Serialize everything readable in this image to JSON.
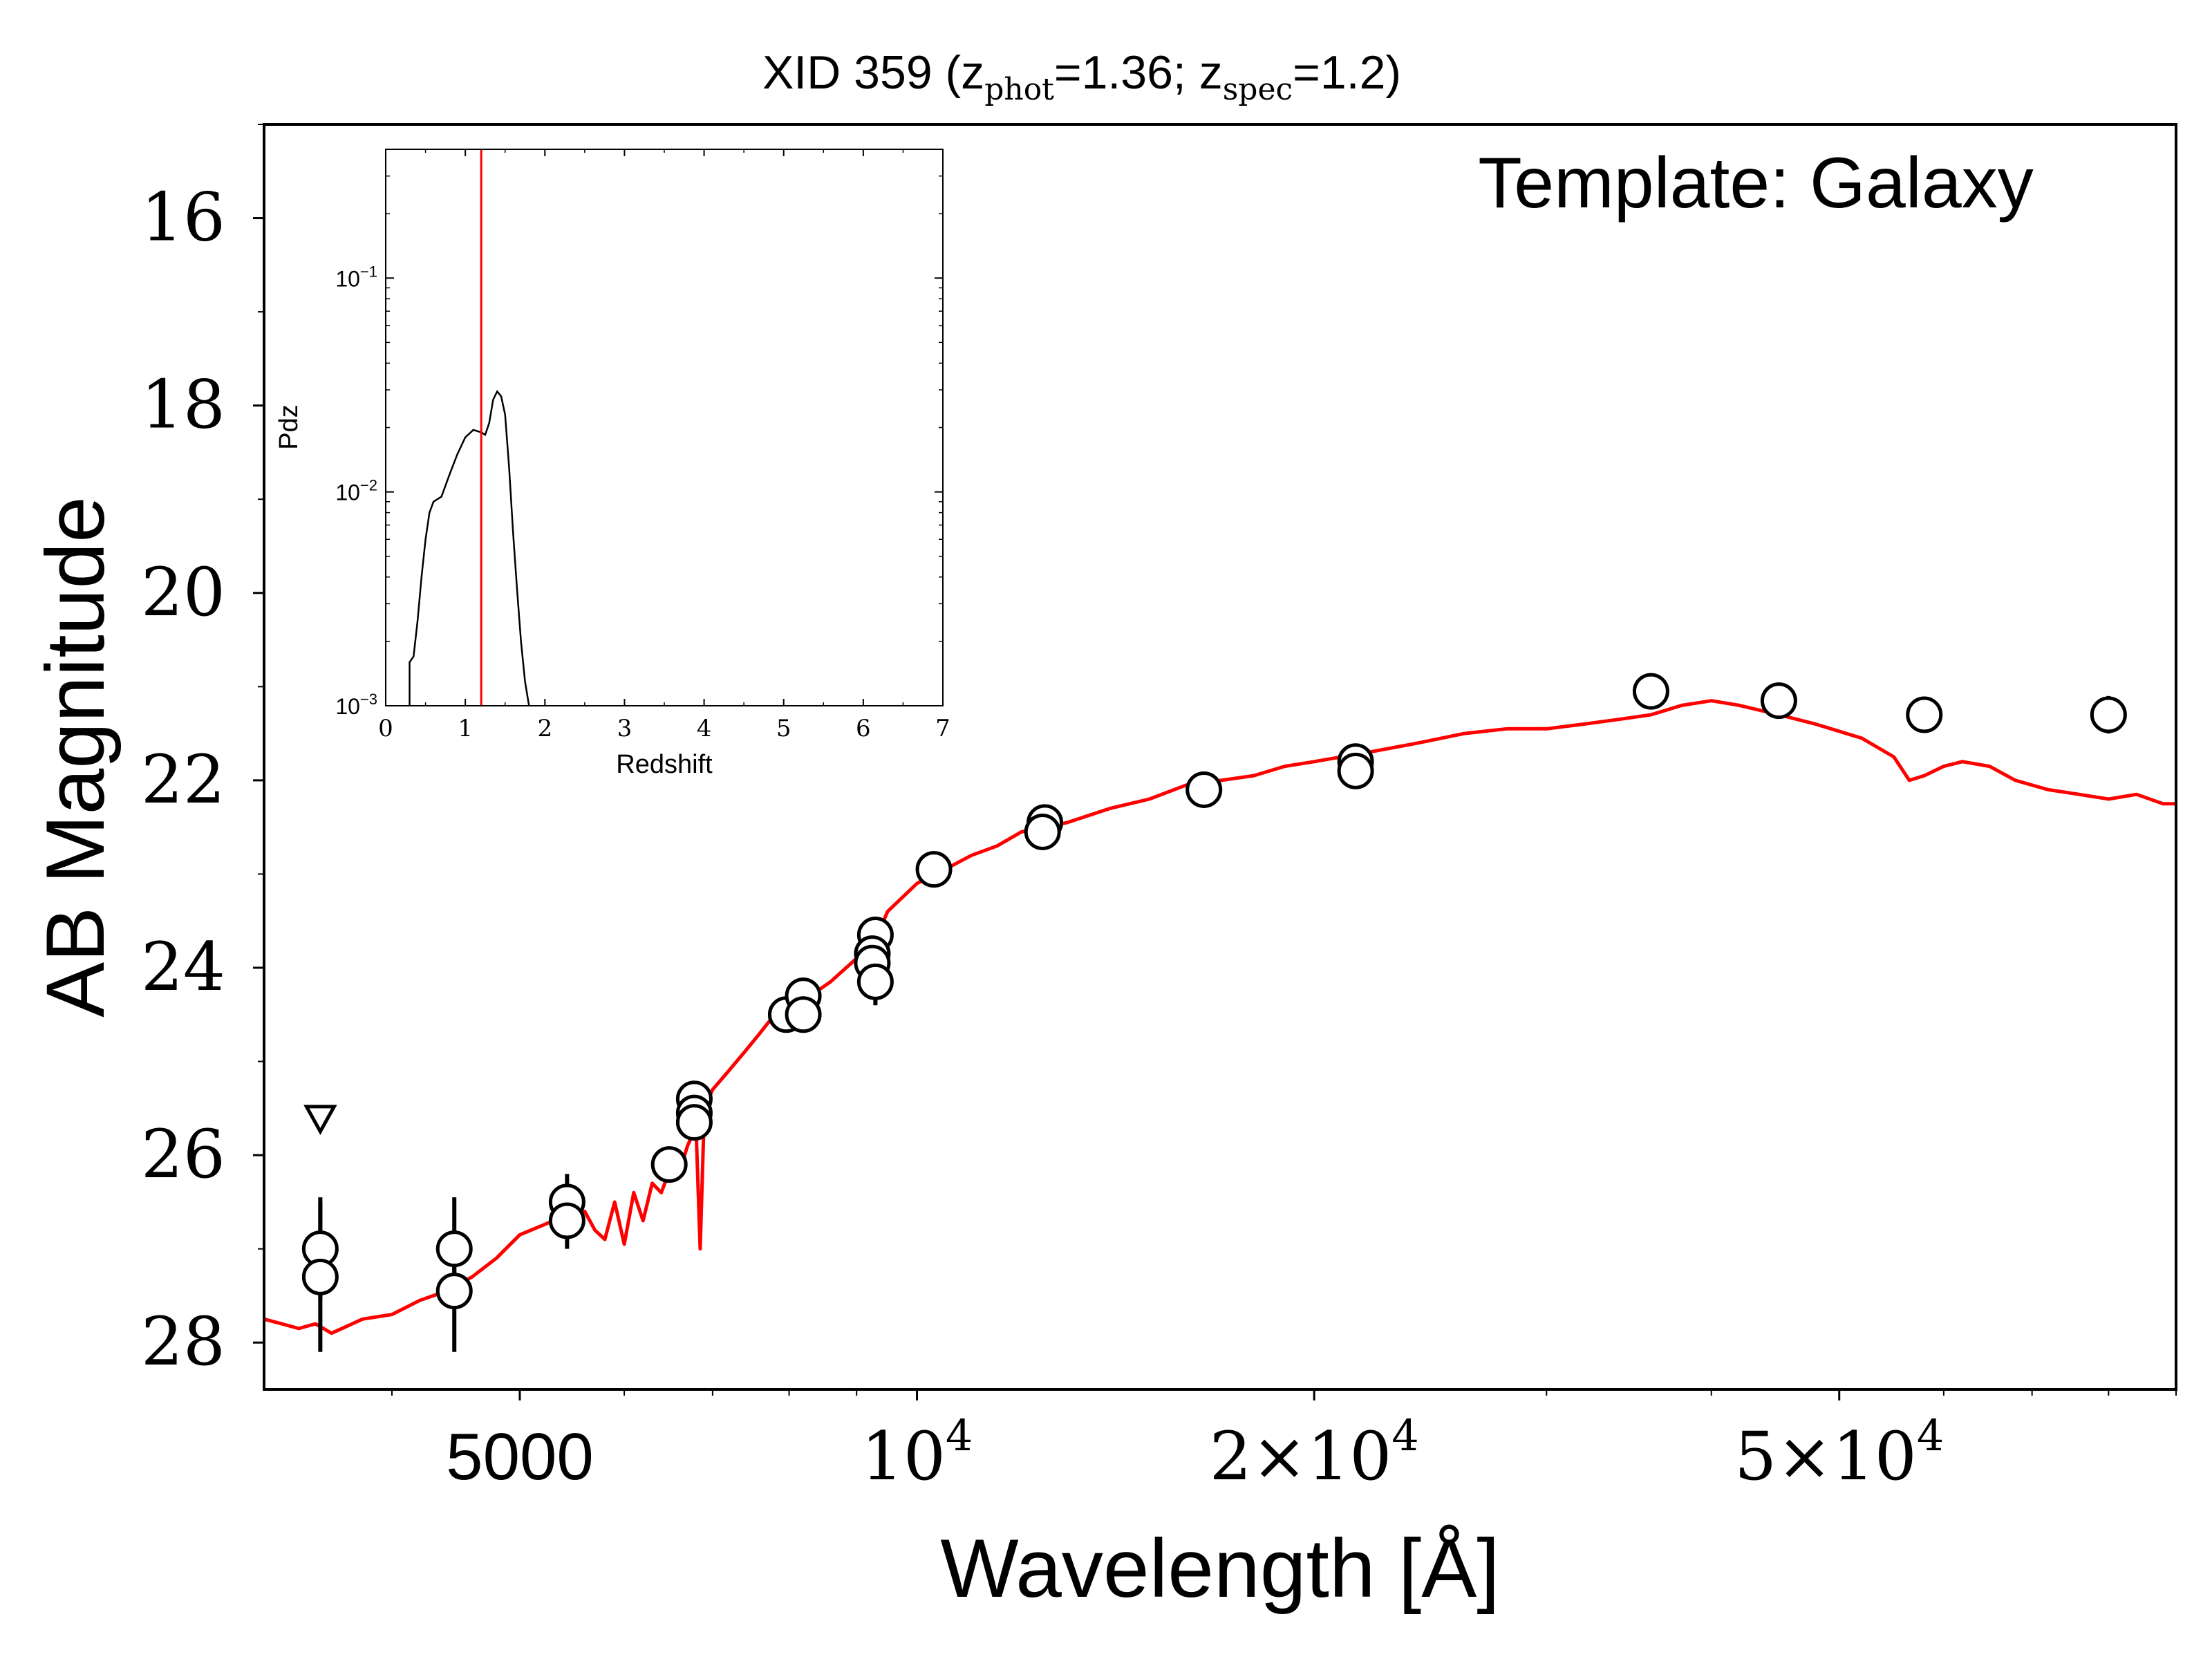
{
  "chart_data": {
    "type": "scatter",
    "title_main": "XID 359 (z",
    "title_phot_sub": "phot",
    "title_mid": "=1.36; z",
    "title_spec_sub": "spec",
    "title_end": "=1.2)",
    "annotation": "Template: Galaxy",
    "xlabel": "Wavelength [Å]",
    "ylabel": "AB Magnitude",
    "xscale": "log",
    "xlim": [
      3200,
      90000
    ],
    "ylim": [
      28.5,
      15.0
    ],
    "x_ticks": [
      {
        "value": 5000,
        "base": "5000",
        "exp": ""
      },
      {
        "value": 10000,
        "base": "10",
        "exp": "4"
      },
      {
        "value": 20000,
        "base": "2×10",
        "exp": "4"
      },
      {
        "value": 50000,
        "base": "5×10",
        "exp": "4"
      }
    ],
    "y_ticks": [
      "16",
      "18",
      "20",
      "22",
      "24",
      "26",
      "28"
    ],
    "colors": {
      "model": "#ff0000",
      "points": "#000000"
    },
    "series": [
      {
        "type": "scatter",
        "points": [
          {
            "x": 3530,
            "y": 27.0,
            "err": 0.55
          },
          {
            "x": 3530,
            "y": 27.3,
            "err": 0.8
          },
          {
            "x": 4460,
            "y": 27.0,
            "err": 0.55
          },
          {
            "x": 4460,
            "y": 27.45,
            "err": 0.65
          },
          {
            "x": 5430,
            "y": 26.5,
            "err": 0.3
          },
          {
            "x": 5430,
            "y": 26.7,
            "err": 0.3
          },
          {
            "x": 6490,
            "y": 26.1,
            "err": 0.12
          },
          {
            "x": 6780,
            "y": 25.4,
            "err": 0.12
          },
          {
            "x": 6780,
            "y": 25.55,
            "err": 0.12
          },
          {
            "x": 6780,
            "y": 25.65,
            "err": 0.12
          },
          {
            "x": 7960,
            "y": 24.5,
            "err": 0.08
          },
          {
            "x": 8200,
            "y": 24.3,
            "err": 0.08
          },
          {
            "x": 8200,
            "y": 24.5,
            "err": 0.08
          },
          {
            "x": 9300,
            "y": 23.65,
            "err": 0.15
          },
          {
            "x": 9250,
            "y": 23.85,
            "err": 0.15
          },
          {
            "x": 9250,
            "y": 23.95,
            "err": 0.15
          },
          {
            "x": 9300,
            "y": 24.15,
            "err": 0.25
          },
          {
            "x": 10300,
            "y": 22.95,
            "err": 0.07
          },
          {
            "x": 12500,
            "y": 22.45,
            "err": 0.05
          },
          {
            "x": 12450,
            "y": 22.55,
            "err": 0.05
          },
          {
            "x": 16500,
            "y": 22.1,
            "err": 0.04
          },
          {
            "x": 21500,
            "y": 21.8,
            "err": 0.04
          },
          {
            "x": 21500,
            "y": 21.9,
            "err": 0.04
          },
          {
            "x": 36000,
            "y": 21.05,
            "err": 0.05
          },
          {
            "x": 45000,
            "y": 21.15,
            "err": 0.06
          },
          {
            "x": 58000,
            "y": 21.3,
            "err": 0.08
          },
          {
            "x": 80000,
            "y": 21.3,
            "err": 0.2
          }
        ]
      },
      {
        "type": "upper_limit",
        "points": [
          {
            "x": 3530,
            "y": 25.6
          }
        ]
      },
      {
        "type": "line",
        "points": [
          [
            3200,
            27.75
          ],
          [
            3300,
            27.8
          ],
          [
            3400,
            27.85
          ],
          [
            3500,
            27.8
          ],
          [
            3600,
            27.9
          ],
          [
            3800,
            27.75
          ],
          [
            4000,
            27.7
          ],
          [
            4200,
            27.55
          ],
          [
            4400,
            27.45
          ],
          [
            4600,
            27.3
          ],
          [
            4800,
            27.1
          ],
          [
            5000,
            26.85
          ],
          [
            5200,
            26.75
          ],
          [
            5400,
            26.65
          ],
          [
            5600,
            26.6
          ],
          [
            5700,
            26.8
          ],
          [
            5800,
            26.9
          ],
          [
            5900,
            26.5
          ],
          [
            6000,
            26.95
          ],
          [
            6100,
            26.4
          ],
          [
            6200,
            26.7
          ],
          [
            6300,
            26.3
          ],
          [
            6400,
            26.4
          ],
          [
            6500,
            26.15
          ],
          [
            6600,
            26.2
          ],
          [
            6700,
            25.9
          ],
          [
            6800,
            25.7
          ],
          [
            6850,
            27.0
          ],
          [
            6900,
            25.5
          ],
          [
            7000,
            25.3
          ],
          [
            7200,
            25.1
          ],
          [
            7400,
            24.9
          ],
          [
            7600,
            24.7
          ],
          [
            7800,
            24.5
          ],
          [
            8000,
            24.4
          ],
          [
            8300,
            24.3
          ],
          [
            8600,
            24.15
          ],
          [
            9000,
            23.9
          ],
          [
            9300,
            23.7
          ],
          [
            9500,
            23.4
          ],
          [
            10000,
            23.1
          ],
          [
            10500,
            22.95
          ],
          [
            11000,
            22.8
          ],
          [
            11500,
            22.7
          ],
          [
            12000,
            22.55
          ],
          [
            13000,
            22.45
          ],
          [
            14000,
            22.3
          ],
          [
            15000,
            22.2
          ],
          [
            16000,
            22.05
          ],
          [
            17000,
            22.0
          ],
          [
            18000,
            21.95
          ],
          [
            19000,
            21.85
          ],
          [
            20000,
            21.8
          ],
          [
            22000,
            21.7
          ],
          [
            24000,
            21.6
          ],
          [
            26000,
            21.5
          ],
          [
            28000,
            21.45
          ],
          [
            30000,
            21.45
          ],
          [
            32000,
            21.4
          ],
          [
            34000,
            21.35
          ],
          [
            36000,
            21.3
          ],
          [
            38000,
            21.2
          ],
          [
            40000,
            21.15
          ],
          [
            42000,
            21.2
          ],
          [
            45000,
            21.3
          ],
          [
            48000,
            21.4
          ],
          [
            52000,
            21.55
          ],
          [
            55000,
            21.75
          ],
          [
            56500,
            22.0
          ],
          [
            58000,
            21.95
          ],
          [
            60000,
            21.85
          ],
          [
            62000,
            21.8
          ],
          [
            65000,
            21.85
          ],
          [
            68000,
            22.0
          ],
          [
            72000,
            22.1
          ],
          [
            76000,
            22.15
          ],
          [
            80000,
            22.2
          ],
          [
            84000,
            22.15
          ],
          [
            88000,
            22.25
          ],
          [
            90000,
            22.25
          ]
        ]
      }
    ],
    "inset": {
      "type": "line",
      "xlabel": "Redshift",
      "ylabel": "Pdz",
      "xlim": [
        0,
        7
      ],
      "ylim": [
        0.001,
        0.4
      ],
      "yscale": "log",
      "x_ticks": [
        "0",
        "1",
        "2",
        "3",
        "4",
        "5",
        "6",
        "7"
      ],
      "y_ticks": [
        {
          "value": 0.1,
          "base": "10",
          "exp": "−1"
        },
        {
          "value": 0.01,
          "base": "10",
          "exp": "−2"
        },
        {
          "value": 0.001,
          "base": "10",
          "exp": "−3"
        }
      ],
      "z_spec_line": 1.2,
      "colors": {
        "pdf": "#000000",
        "zspec": "#ff0000"
      },
      "pdf": [
        [
          0.3,
          0.001
        ],
        [
          0.3,
          0.0016
        ],
        [
          0.35,
          0.0017
        ],
        [
          0.4,
          0.0025
        ],
        [
          0.45,
          0.004
        ],
        [
          0.5,
          0.006
        ],
        [
          0.55,
          0.008
        ],
        [
          0.6,
          0.009
        ],
        [
          0.7,
          0.0095
        ],
        [
          0.8,
          0.012
        ],
        [
          0.9,
          0.015
        ],
        [
          1.0,
          0.018
        ],
        [
          1.1,
          0.0195
        ],
        [
          1.2,
          0.019
        ],
        [
          1.25,
          0.0185
        ],
        [
          1.3,
          0.021
        ],
        [
          1.35,
          0.027
        ],
        [
          1.4,
          0.0295
        ],
        [
          1.45,
          0.028
        ],
        [
          1.5,
          0.023
        ],
        [
          1.55,
          0.013
        ],
        [
          1.6,
          0.0065
        ],
        [
          1.65,
          0.0035
        ],
        [
          1.7,
          0.002
        ],
        [
          1.75,
          0.0013
        ],
        [
          1.8,
          0.001
        ]
      ]
    }
  }
}
